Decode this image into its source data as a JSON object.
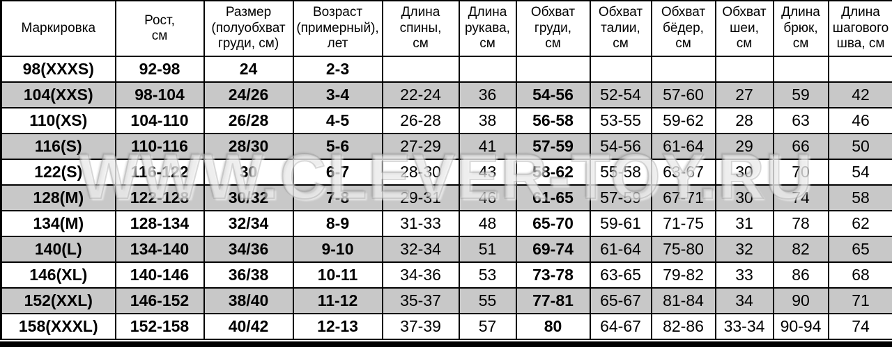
{
  "watermark": "WWW.CLEVER-TOY.RU",
  "colors": {
    "row_white": "#ffffff",
    "row_gray": "#c8c8c8",
    "border": "#000000",
    "text": "#000000"
  },
  "table": {
    "columns": [
      "Маркировка",
      "Рост,\nсм",
      "Размер\n(полуобхват\nгруди, см)",
      "Возраст\n(примерный),\nлет",
      "Длина\nспины,\nсм",
      "Длина\nрукава,\nсм",
      "Обхват\nгруди,\nсм",
      "Обхват\nталии,\nсм",
      "Обхват\nбёдер,\nсм",
      "Обхват\nшеи,\nсм",
      "Длина\nбрюк,\nсм",
      "Длина\nшагового\nшва, см"
    ],
    "bold_columns": [
      0,
      1,
      2,
      3,
      6
    ],
    "rows": [
      [
        "98(XXXS)",
        "92-98",
        "24",
        "2-3",
        "",
        "",
        "",
        "",
        "",
        "",
        "",
        ""
      ],
      [
        "104(XXS)",
        "98-104",
        "24/26",
        "3-4",
        "22-24",
        "36",
        "54-56",
        "52-54",
        "57-60",
        "27",
        "59",
        "42"
      ],
      [
        "110(XS)",
        "104-110",
        "26/28",
        "4-5",
        "26-28",
        "38",
        "56-58",
        "53-55",
        "59-62",
        "28",
        "63",
        "46"
      ],
      [
        "116(S)",
        "110-116",
        "28/30",
        "5-6",
        "27-29",
        "41",
        "57-59",
        "54-56",
        "61-64",
        "29",
        "66",
        "50"
      ],
      [
        "122(S)",
        "116-122",
        "30",
        "6-7",
        "28-30",
        "43",
        "58-62",
        "55-58",
        "63-67",
        "30",
        "70",
        "54"
      ],
      [
        "128(M)",
        "122-128",
        "30/32",
        "7-8",
        "29-31",
        "46",
        "61-65",
        "57-59",
        "67-71",
        "30",
        "74",
        "58"
      ],
      [
        "134(M)",
        "128-134",
        "32/34",
        "8-9",
        "31-33",
        "48",
        "65-70",
        "59-61",
        "71-75",
        "31",
        "78",
        "62"
      ],
      [
        "140(L)",
        "134-140",
        "34/36",
        "9-10",
        "32-34",
        "51",
        "69-74",
        "61-64",
        "75-80",
        "32",
        "82",
        "65"
      ],
      [
        "146(XL)",
        "140-146",
        "36/38",
        "10-11",
        "34-36",
        "53",
        "73-78",
        "63-65",
        "79-82",
        "33",
        "86",
        "68"
      ],
      [
        "152(XXL)",
        "146-152",
        "38/40",
        "11-12",
        "35-37",
        "55",
        "77-81",
        "65-67",
        "81-84",
        "34",
        "90",
        "71"
      ],
      [
        "158(XXXL)",
        "152-158",
        "40/42",
        "12-13",
        "37-39",
        "57",
        "80",
        "64-67",
        "82-86",
        "33-34",
        "90-94",
        "74"
      ]
    ]
  }
}
